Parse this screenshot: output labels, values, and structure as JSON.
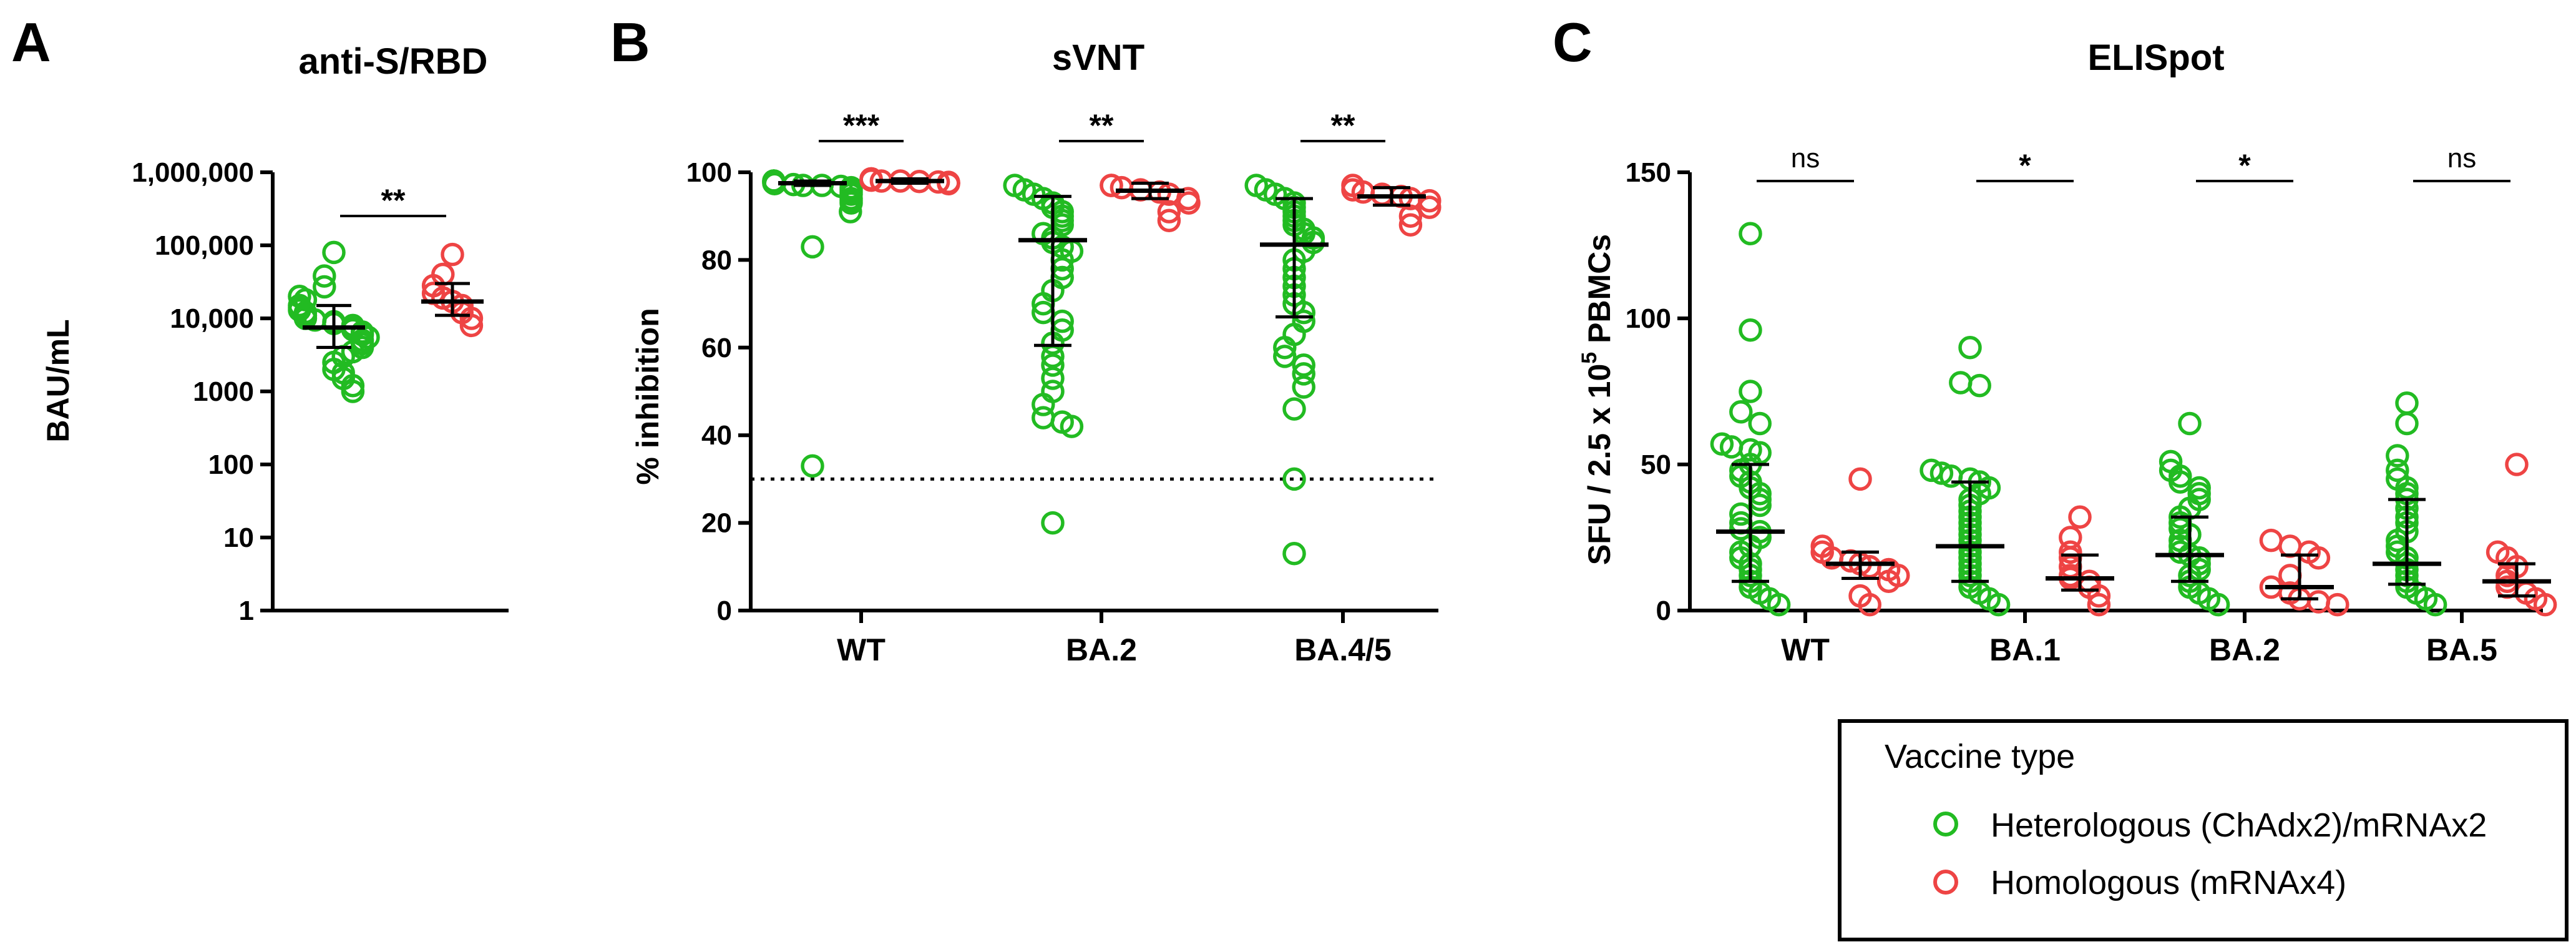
{
  "colors": {
    "heterologous": "#22bb22",
    "homologous": "#ee4444",
    "stat": "#000000"
  },
  "legend": {
    "title": "Vaccine type",
    "items": [
      {
        "label": "Heterologous (ChAdx2)/mRNAx2",
        "color": "#22bb22"
      },
      {
        "label": "Homologous (mRNAx4)",
        "color": "#ee4444"
      }
    ]
  },
  "chart_data": [
    {
      "panel_label": "A",
      "title": "anti-S/RBD",
      "type": "scatter",
      "ylabel": "BAU/mL",
      "yscale": "log",
      "ylim": [
        1,
        1000000
      ],
      "yticks": [
        1,
        10,
        100,
        1000,
        10000,
        100000,
        1000000
      ],
      "ytick_labels": [
        "1",
        "10",
        "100",
        "1000",
        "10,000",
        "100,000",
        "1,000,000"
      ],
      "groups": [
        {
          "category": "",
          "series": "Heterologous (ChAdx2)/mRNAx2",
          "median": 7500,
          "lower": 4000,
          "upper": 15000,
          "values": [
            80000,
            38000,
            27000,
            20000,
            18000,
            15000,
            14000,
            13000,
            12000,
            11000,
            10000,
            9500,
            9000,
            8500,
            8000,
            7500,
            7000,
            6500,
            6000,
            5500,
            5000,
            4500,
            4000,
            3500,
            3000,
            2500,
            2000,
            1800,
            1500,
            1200,
            1000
          ]
        },
        {
          "category": "",
          "series": "Homologous (mRNAx4)",
          "median": 17000,
          "lower": 11000,
          "upper": 30000,
          "values": [
            75000,
            40000,
            28000,
            22000,
            19000,
            17000,
            15000,
            12000,
            10000,
            8000
          ]
        }
      ],
      "comparisons": [
        {
          "category": "",
          "label": "**"
        }
      ]
    },
    {
      "panel_label": "B",
      "title": "sVNT",
      "type": "scatter",
      "ylabel": "% inhibition",
      "ylim": [
        0,
        100
      ],
      "yticks": [
        0,
        20,
        40,
        60,
        80,
        100
      ],
      "ytick_labels": [
        "0",
        "20",
        "40",
        "60",
        "80",
        "100"
      ],
      "reference_line": 30,
      "categories": [
        "WT",
        "BA.2",
        "BA.4/5"
      ],
      "groups": [
        {
          "category": "WT",
          "series": "Heterologous (ChAdx2)/mRNAx2",
          "median": 97.5,
          "lower": 97,
          "upper": 98,
          "values": [
            98,
            98,
            98,
            97.8,
            97.6,
            97.5,
            97.4,
            97.2,
            97,
            97,
            96.8,
            96.5,
            96,
            95.5,
            95,
            94,
            93.5,
            93,
            91,
            83,
            33
          ]
        },
        {
          "category": "WT",
          "series": "Homologous (mRNAx4)",
          "median": 98,
          "lower": 97.5,
          "upper": 98.5,
          "values": [
            98.5,
            98.5,
            98.3,
            98.2,
            98,
            98,
            97.9,
            97.8,
            97.7,
            97.5,
            97.5,
            97.4
          ]
        },
        {
          "category": "BA.2",
          "series": "Heterologous (ChAdx2)/mRNAx2",
          "median": 84.5,
          "lower": 60.5,
          "upper": 94.5,
          "values": [
            97,
            96,
            95,
            94,
            93,
            92,
            91,
            90,
            89,
            88,
            86,
            85,
            84,
            83,
            82,
            80,
            78,
            76,
            73,
            70,
            68,
            66,
            64,
            61,
            58,
            56,
            53,
            50,
            47,
            44,
            43,
            42,
            20
          ]
        },
        {
          "category": "BA.2",
          "series": "Homologous (mRNAx4)",
          "median": 95.8,
          "lower": 94,
          "upper": 97.5,
          "values": [
            97,
            97,
            96.5,
            96,
            95.5,
            95,
            94,
            93,
            91,
            89
          ]
        },
        {
          "category": "BA.4/5",
          "series": "Heterologous (ChAdx2)/mRNAx2",
          "median": 83.5,
          "lower": 67,
          "upper": 94,
          "values": [
            97,
            96,
            95,
            94,
            93,
            92,
            91,
            90,
            89,
            88,
            87,
            86,
            85,
            84,
            82,
            80,
            78,
            76,
            74,
            72,
            70,
            68,
            66,
            63,
            60,
            58,
            56,
            54,
            51,
            46,
            30,
            13
          ]
        },
        {
          "category": "BA.4/5",
          "series": "Homologous (mRNAx4)",
          "median": 94.5,
          "lower": 92.5,
          "upper": 96.5,
          "values": [
            97,
            96,
            95.5,
            95,
            94.5,
            94,
            93.5,
            92,
            90,
            88
          ]
        }
      ],
      "comparisons": [
        {
          "category": "WT",
          "label": "***"
        },
        {
          "category": "BA.2",
          "label": "**"
        },
        {
          "category": "BA.4/5",
          "label": "**"
        }
      ]
    },
    {
      "panel_label": "C",
      "title": "ELISpot",
      "type": "scatter",
      "ylabel_main": "SFU / 2.5 x 10",
      "ylabel_sup": "5",
      "ylabel_tail": " PBMCs",
      "ylim": [
        0,
        150
      ],
      "yticks": [
        0,
        50,
        100,
        150
      ],
      "ytick_labels": [
        "0",
        "50",
        "100",
        "150"
      ],
      "categories": [
        "WT",
        "BA.1",
        "BA.2",
        "BA.5"
      ],
      "groups": [
        {
          "category": "WT",
          "series": "Heterologous (ChAdx2)/mRNAx2",
          "median": 27,
          "lower": 10,
          "upper": 50,
          "values": [
            129,
            96,
            75,
            68,
            64,
            57,
            56,
            55,
            54,
            50,
            48,
            46,
            44,
            42,
            40,
            38,
            36,
            33,
            30,
            28,
            27,
            25,
            22,
            20,
            18,
            16,
            14,
            12,
            10,
            8,
            6,
            4,
            2
          ]
        },
        {
          "category": "WT",
          "series": "Homologous (mRNAx4)",
          "median": 16,
          "lower": 11,
          "upper": 20,
          "values": [
            45,
            22,
            20,
            18,
            17,
            16,
            15,
            14,
            12,
            10,
            5,
            2
          ]
        },
        {
          "category": "BA.1",
          "series": "Heterologous (ChAdx2)/mRNAx2",
          "median": 22,
          "lower": 10,
          "upper": 44,
          "values": [
            90,
            78,
            77,
            48,
            47,
            46,
            45,
            44,
            42,
            40,
            38,
            36,
            34,
            32,
            30,
            28,
            26,
            24,
            22,
            20,
            18,
            16,
            14,
            12,
            10,
            8,
            6,
            4,
            2
          ]
        },
        {
          "category": "BA.1",
          "series": "Homologous (mRNAx4)",
          "median": 11,
          "lower": 7,
          "upper": 19,
          "values": [
            32,
            25,
            20,
            18,
            15,
            12,
            11,
            10,
            8,
            5,
            2
          ]
        },
        {
          "category": "BA.2",
          "series": "Heterologous (ChAdx2)/mRNAx2",
          "median": 19,
          "lower": 10,
          "upper": 32,
          "values": [
            64,
            51,
            48,
            46,
            44,
            42,
            40,
            38,
            35,
            32,
            30,
            28,
            26,
            24,
            22,
            20,
            19,
            18,
            16,
            14,
            12,
            10,
            8,
            6,
            4,
            2
          ]
        },
        {
          "category": "BA.2",
          "series": "Homologous (mRNAx4)",
          "median": 8,
          "lower": 4,
          "upper": 19,
          "values": [
            24,
            22,
            20,
            18,
            12,
            8,
            6,
            4,
            3,
            2
          ]
        },
        {
          "category": "BA.5",
          "series": "Heterologous (ChAdx2)/mRNAx2",
          "median": 16,
          "lower": 9,
          "upper": 38,
          "values": [
            71,
            64,
            53,
            48,
            45,
            42,
            40,
            38,
            35,
            32,
            30,
            27,
            24,
            22,
            20,
            18,
            16,
            14,
            12,
            10,
            8,
            6,
            4,
            2
          ]
        },
        {
          "category": "BA.5",
          "series": "Homologous (mRNAx4)",
          "median": 10,
          "lower": 5,
          "upper": 16,
          "values": [
            50,
            20,
            18,
            15,
            12,
            10,
            8,
            6,
            4,
            2
          ]
        }
      ],
      "comparisons": [
        {
          "category": "WT",
          "label": "ns"
        },
        {
          "category": "BA.1",
          "label": "*"
        },
        {
          "category": "BA.2",
          "label": "*"
        },
        {
          "category": "BA.5",
          "label": "ns"
        }
      ]
    }
  ]
}
